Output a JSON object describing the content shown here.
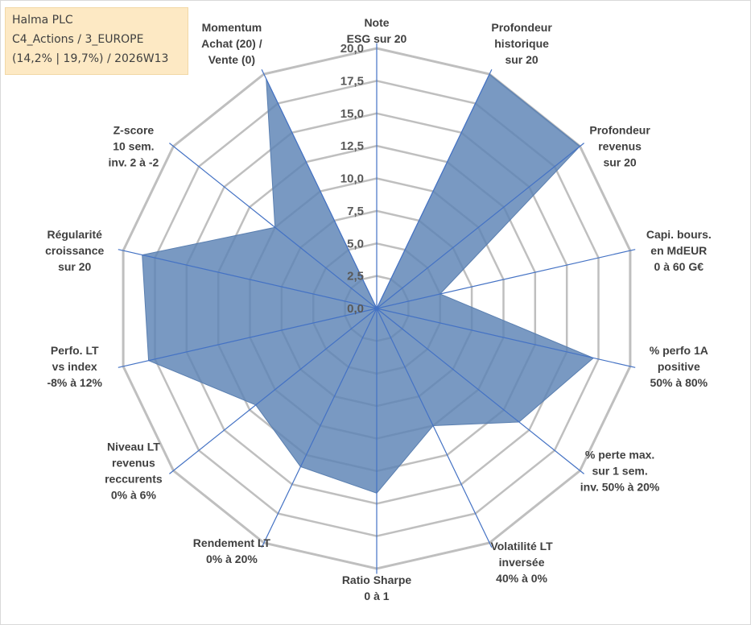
{
  "info": {
    "line1": "Halma PLC",
    "line2": "C4_Actions / 3_EUROPE",
    "line3": "(14,2% | 19,7%) / 2026W13"
  },
  "chart_data": {
    "type": "radar",
    "title": "",
    "range": [
      0,
      20
    ],
    "ticks": [
      "0,0",
      "2,5",
      "5,0",
      "7,5",
      "10,0",
      "12,5",
      "15,0",
      "17,5",
      "20,0"
    ],
    "axes": [
      [
        "Note",
        "ESG sur 20"
      ],
      [
        "Profondeur",
        "historique",
        "sur 20"
      ],
      [
        "Profondeur",
        "revenus",
        "sur 20"
      ],
      [
        "Capi. bours.",
        "en MdEUR",
        "0 à 60 G€"
      ],
      [
        "% perfo 1A",
        "positive",
        "50% à 80%"
      ],
      [
        "% perte max.",
        "sur 1 sem.",
        "inv. 50% à 20%"
      ],
      [
        "Volatilité LT",
        "inversée",
        "40% à 0%"
      ],
      [
        "Ratio Sharpe",
        "0 à 1"
      ],
      [
        "Rendement LT",
        "0% à 20%"
      ],
      [
        "Niveau LT",
        "revenus",
        "reccurents",
        "0% à 6%"
      ],
      [
        "Perfo. LT",
        "vs index",
        "-8% à 12%"
      ],
      [
        "Régularité",
        "croissance",
        "sur 20"
      ],
      [
        "Z-score",
        "10 sem.",
        "inv. 2 à -2"
      ],
      [
        "Momentum",
        "Achat (20) /",
        "Vente (0)"
      ]
    ],
    "series": [
      {
        "name": "Halma PLC",
        "values": [
          0,
          20,
          20,
          5,
          17.1,
          14.0,
          10.0,
          14.2,
          13.5,
          11.9,
          18.0,
          18.5,
          10.0,
          19.6
        ]
      }
    ],
    "colors": {
      "fill": "#5b82b4",
      "stroke": "#4472c4",
      "grid": "#bfbfbf",
      "spoke": "#4472c4"
    }
  }
}
